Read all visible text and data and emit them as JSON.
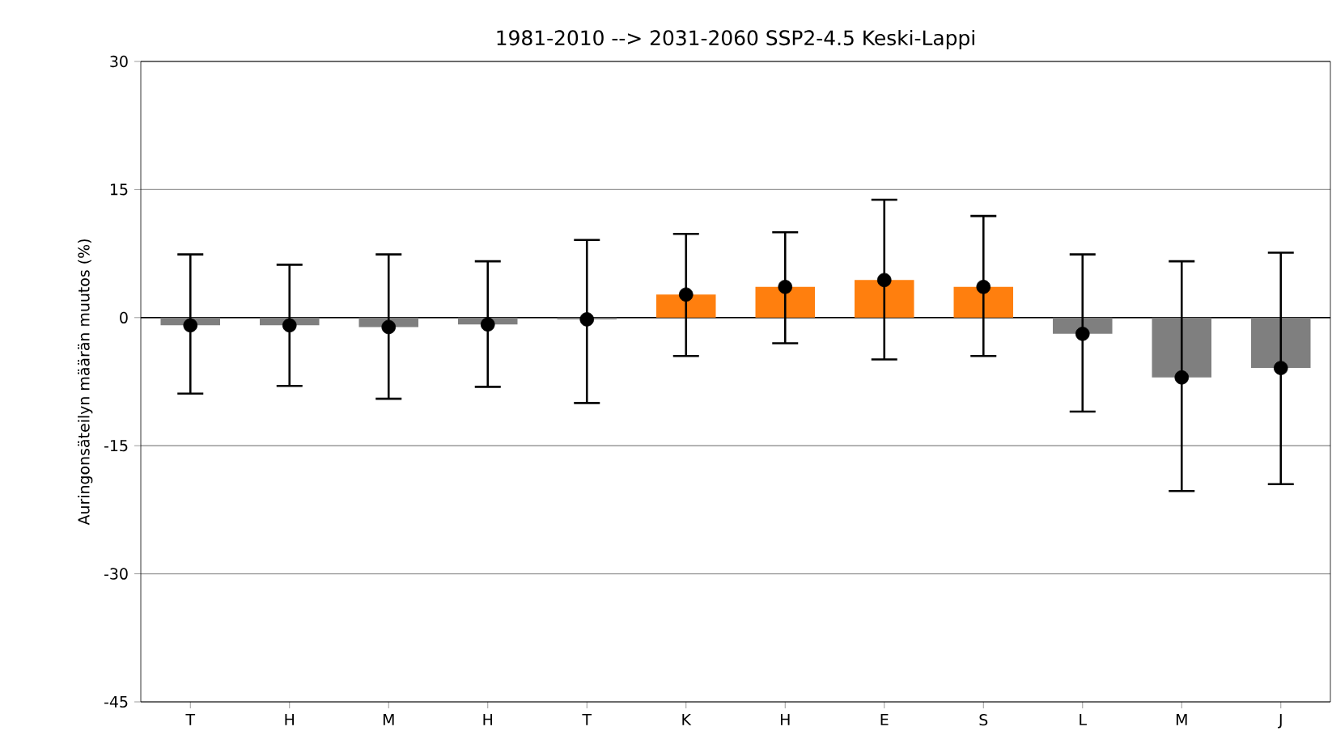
{
  "chart_data": {
    "type": "bar",
    "title": "1981-2010 --> 2031-2060    SSP2-4.5     Keski-Lappi",
    "ylabel": "Auringonsäteilyn määrän muutos (%)",
    "categories": [
      "T",
      "H",
      "M",
      "H",
      "T",
      "K",
      "H",
      "E",
      "S",
      "L",
      "M",
      "J"
    ],
    "series": [
      {
        "values": [
          -0.9,
          -0.9,
          -1.1,
          -0.8,
          -0.2,
          2.7,
          3.6,
          4.4,
          3.6,
          -1.9,
          -7.0,
          -5.9
        ],
        "colors": [
          "#7f7f7f",
          "#7f7f7f",
          "#7f7f7f",
          "#7f7f7f",
          "#7f7f7f",
          "#ff7f0e",
          "#ff7f0e",
          "#ff7f0e",
          "#ff7f0e",
          "#7f7f7f",
          "#7f7f7f",
          "#7f7f7f"
        ]
      },
      {
        "type": "scatter",
        "color": "#000000",
        "marker": "circle",
        "values": [
          -0.9,
          -0.9,
          -1.1,
          -0.8,
          -0.2,
          2.7,
          3.6,
          4.4,
          3.6,
          -1.9,
          -7.0,
          -5.9
        ],
        "errors": [
          [
            -8.9,
            7.4
          ],
          [
            -8.0,
            6.2
          ],
          [
            -9.5,
            7.4
          ],
          [
            -8.1,
            6.6
          ],
          [
            -10.0,
            9.1
          ],
          [
            -4.5,
            9.8
          ],
          [
            -3.0,
            10.0
          ],
          [
            -4.9,
            13.8
          ],
          [
            -4.5,
            11.9
          ],
          [
            -11.0,
            7.4
          ],
          [
            -20.3,
            6.6
          ],
          [
            -19.5,
            7.6
          ]
        ]
      }
    ],
    "ylim": [
      -45,
      30
    ],
    "yticks": [
      -45,
      -30,
      -15,
      0,
      15,
      30
    ],
    "grid": "y",
    "ref_lines": [
      {
        "axis": "y",
        "value": 0,
        "color": "#000000"
      }
    ]
  }
}
